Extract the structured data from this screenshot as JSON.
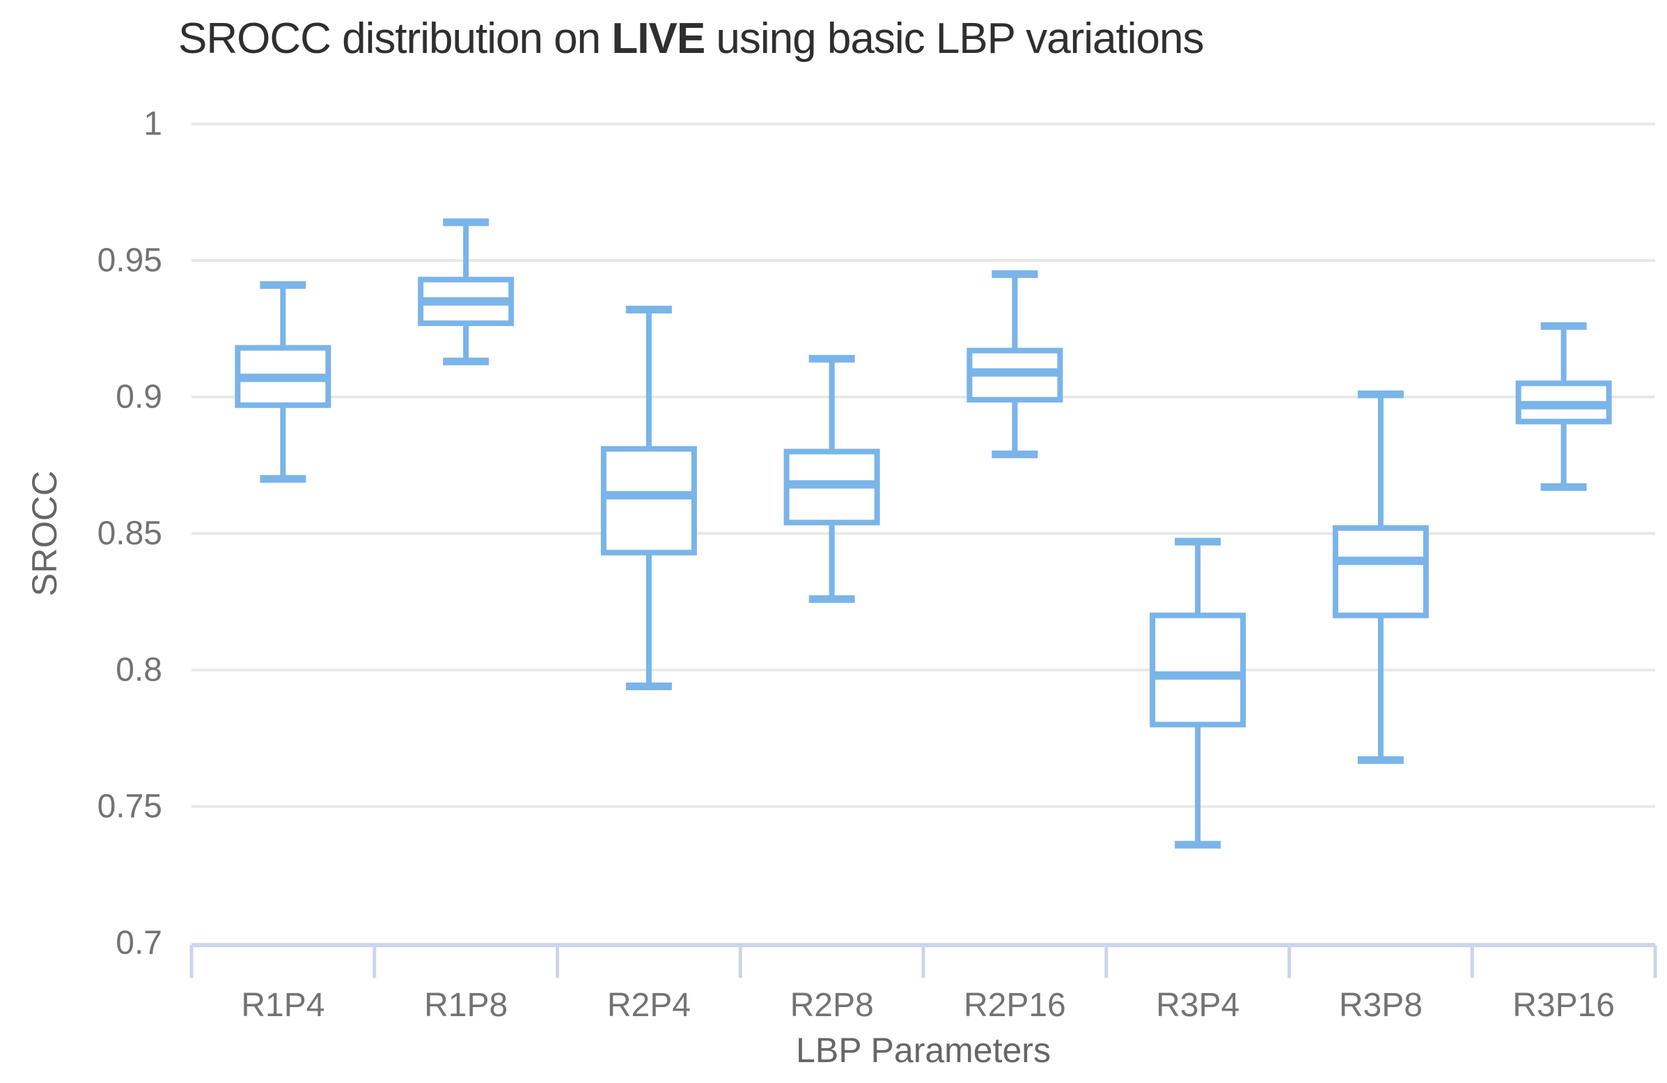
{
  "title": {
    "prefix": "SROCC distribution on ",
    "emphasis": "LIVE",
    "suffix": " using basic LBP variations"
  },
  "colors": {
    "box_stroke": "#7ab4e9",
    "box_fill": "#ffffff",
    "gridline": "#e9e9e9",
    "axis_line": "#ccd5ea",
    "tick_label": "#737373",
    "axis_title": "#666666",
    "title_text": "#2f2f2f",
    "background": "#ffffff"
  },
  "chart_data": {
    "type": "box",
    "title": "SROCC distribution on LIVE using basic LBP variations",
    "xlabel": "LBP Parameters",
    "ylabel": "SROCC",
    "ylim": [
      0.7,
      1.0
    ],
    "grid": true,
    "legend": "none",
    "yticks": [
      {
        "value": 1.0,
        "label": "1"
      },
      {
        "value": 0.95,
        "label": "0.95"
      },
      {
        "value": 0.9,
        "label": "0.9"
      },
      {
        "value": 0.85,
        "label": "0.85"
      },
      {
        "value": 0.8,
        "label": "0.8"
      },
      {
        "value": 0.75,
        "label": "0.75"
      },
      {
        "value": 0.7,
        "label": "0.7"
      }
    ],
    "categories": [
      "R1P4",
      "R1P8",
      "R2P4",
      "R2P8",
      "R2P16",
      "R3P4",
      "R3P8",
      "R3P16"
    ],
    "series": [
      {
        "name": "R1P4",
        "low": 0.87,
        "q1": 0.897,
        "median": 0.907,
        "q3": 0.918,
        "high": 0.941
      },
      {
        "name": "R1P8",
        "low": 0.913,
        "q1": 0.927,
        "median": 0.935,
        "q3": 0.943,
        "high": 0.964
      },
      {
        "name": "R2P4",
        "low": 0.794,
        "q1": 0.843,
        "median": 0.864,
        "q3": 0.881,
        "high": 0.932
      },
      {
        "name": "R2P8",
        "low": 0.826,
        "q1": 0.854,
        "median": 0.868,
        "q3": 0.88,
        "high": 0.914
      },
      {
        "name": "R2P16",
        "low": 0.879,
        "q1": 0.899,
        "median": 0.909,
        "q3": 0.917,
        "high": 0.945
      },
      {
        "name": "R3P4",
        "low": 0.736,
        "q1": 0.78,
        "median": 0.798,
        "q3": 0.82,
        "high": 0.847
      },
      {
        "name": "R3P8",
        "low": 0.767,
        "q1": 0.82,
        "median": 0.84,
        "q3": 0.852,
        "high": 0.901
      },
      {
        "name": "R3P16",
        "low": 0.867,
        "q1": 0.891,
        "median": 0.897,
        "q3": 0.905,
        "high": 0.926
      }
    ]
  }
}
